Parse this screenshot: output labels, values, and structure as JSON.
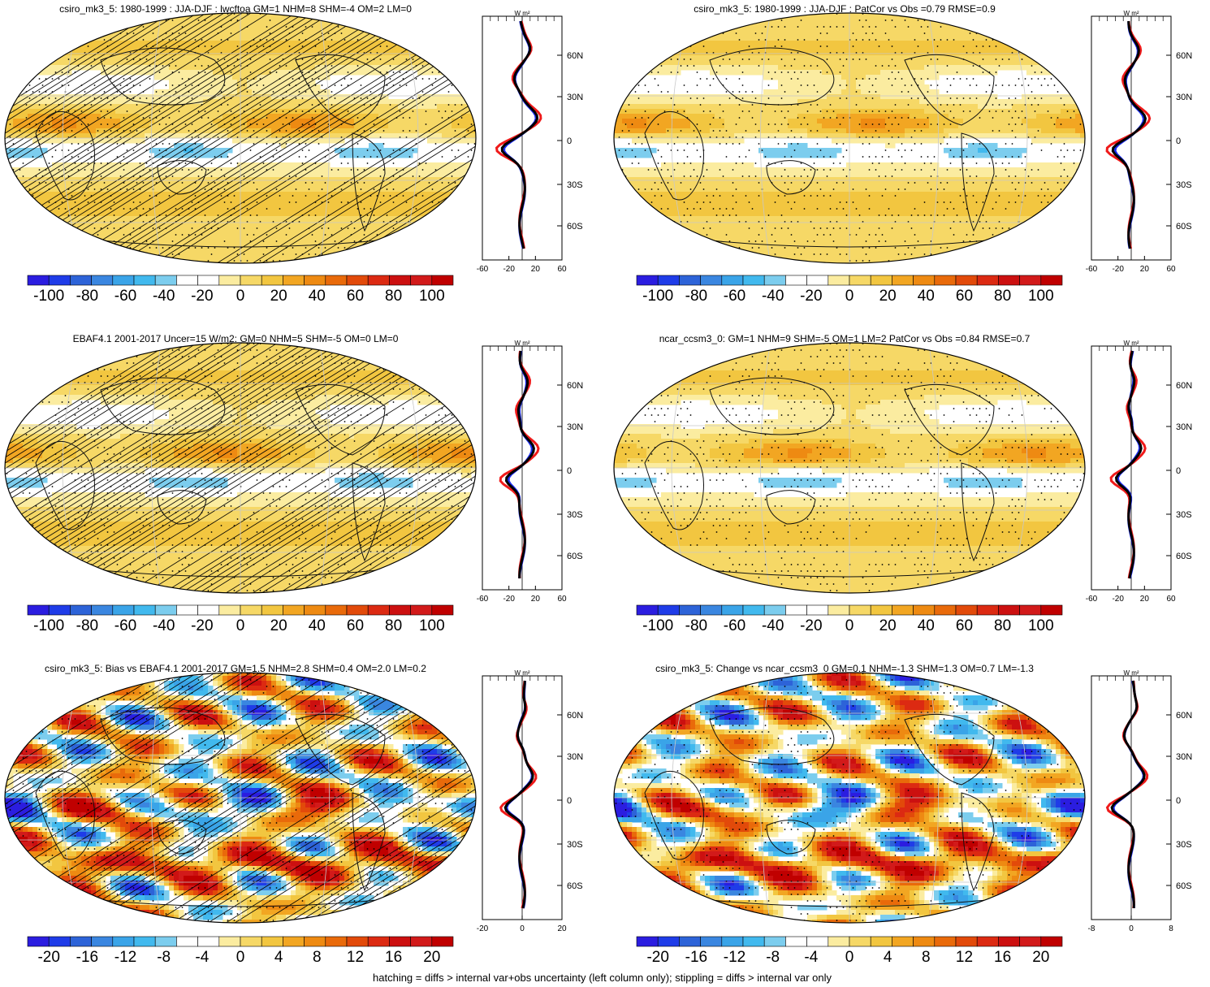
{
  "panels": [
    {
      "id": "p1",
      "title": "csiro_mk3_5: 1980-1999 : JJA-DJF : lwcftoa GM=1 NHM=8 SHM=-4 OM=2 LM=0",
      "colorbar_labels": [
        "-100",
        "-80",
        "-60",
        "-40",
        "-20",
        "0",
        "20",
        "40",
        "60",
        "80",
        "100"
      ],
      "profile": {
        "unit_label": "W m²",
        "x_ticks": [
          "-60",
          "-20",
          "20",
          "60"
        ],
        "y_ticks": [
          "60N",
          "30N",
          "0",
          "30S",
          "60S"
        ]
      },
      "hatching": true
    },
    {
      "id": "p2",
      "title": "csiro_mk3_5: 1980-1999 : JJA-DJF : PatCor vs Obs =0.79 RMSE=0.9",
      "colorbar_labels": [
        "-100",
        "-80",
        "-60",
        "-40",
        "-20",
        "0",
        "20",
        "40",
        "60",
        "80",
        "100"
      ],
      "profile": {
        "unit_label": "W m²",
        "x_ticks": [
          "-60",
          "-20",
          "20",
          "60"
        ],
        "y_ticks": [
          "60N",
          "30N",
          "0",
          "30S",
          "60S"
        ]
      },
      "hatching": false
    },
    {
      "id": "p3",
      "title": "EBAF4.1 2001-2017 Uncer=15 W/m2: GM=0 NHM=5 SHM=-5 OM=0 LM=0",
      "colorbar_labels": [
        "-100",
        "-80",
        "-60",
        "-40",
        "-20",
        "0",
        "20",
        "40",
        "60",
        "80",
        "100"
      ],
      "profile": {
        "unit_label": "W m²",
        "x_ticks": [
          "-60",
          "-20",
          "20",
          "60"
        ],
        "y_ticks": [
          "60N",
          "30N",
          "0",
          "30S",
          "60S"
        ]
      },
      "hatching": true
    },
    {
      "id": "p4",
      "title": "ncar_ccsm3_0: GM=1 NHM=9 SHM=-5 OM=1 LM=2 PatCor vs Obs =0.84 RMSE=0.7",
      "colorbar_labels": [
        "-100",
        "-80",
        "-60",
        "-40",
        "-20",
        "0",
        "20",
        "40",
        "60",
        "80",
        "100"
      ],
      "profile": {
        "unit_label": "W m²",
        "x_ticks": [
          "-60",
          "-20",
          "20",
          "60"
        ],
        "y_ticks": [
          "60N",
          "30N",
          "0",
          "30S",
          "60S"
        ]
      },
      "hatching": false
    },
    {
      "id": "p5",
      "title": "csiro_mk3_5: Bias vs EBAF4.1 2001-2017 GM=1.5 NHM=2.8 SHM=0.4 OM=2.0 LM=0.2",
      "colorbar_labels": [
        "-20",
        "-16",
        "-12",
        "-8",
        "-4",
        "0",
        "4",
        "8",
        "12",
        "16",
        "20"
      ],
      "profile": {
        "unit_label": "W m²",
        "x_ticks": [
          "-20",
          "0",
          "20"
        ],
        "y_ticks": [
          "60N",
          "30N",
          "0",
          "30S",
          "60S"
        ]
      },
      "hatching": true
    },
    {
      "id": "p6",
      "title": "csiro_mk3_5: Change vs ncar_ccsm3_0 GM=0.1 NHM=-1.3 SHM=1.3 OM=0.7 LM=-1.3",
      "colorbar_labels": [
        "-20",
        "-16",
        "-12",
        "-8",
        "-4",
        "0",
        "4",
        "8",
        "12",
        "16",
        "20"
      ],
      "profile": {
        "unit_label": "W m²",
        "x_ticks": [
          "-8",
          "0",
          "8"
        ],
        "y_ticks": [
          "60N",
          "30N",
          "0",
          "30S",
          "60S"
        ]
      },
      "hatching": false
    }
  ],
  "colors": {
    "scale": [
      "#2b1de0",
      "#1f3ce8",
      "#2d63d8",
      "#3a86e0",
      "#3aa4e8",
      "#41b9ee",
      "#7ccdee",
      "#ffffff",
      "#ffffff",
      "#fbeca0",
      "#f6d866",
      "#f2c640",
      "#f2a622",
      "#ee8a12",
      "#e96a0a",
      "#e24a0a",
      "#dc2a12",
      "#cc1010",
      "#d21a1a",
      "#c00000"
    ],
    "profile_blue": "#1a2cf0",
    "profile_red": "#ef1a1a",
    "profile_black": "#000000"
  },
  "footer": "hatching = diffs > internal var+obs uncertainty (left column only); stippling = diffs > internal var only"
}
